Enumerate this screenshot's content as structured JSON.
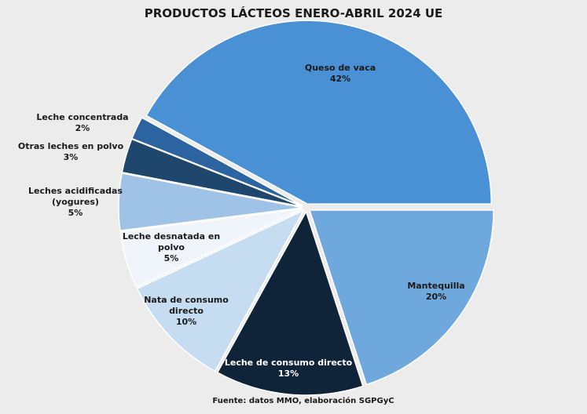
{
  "chart_data": {
    "type": "pie",
    "title": "PRODUCTOS LÁCTEOS ENERO-ABRIL 2024 UE",
    "source": "Fuente: datos MMO,  elaboración SGPGyC",
    "categories": [
      "Queso de vaca",
      "Mantequilla",
      "Leche de consumo directo",
      "Nata de consumo directo",
      "Leche desnatada en polvo",
      "Leches acidificadas (yogures)",
      "Otras leches en polvo",
      "Leche concentrada"
    ],
    "values": [
      42,
      20,
      13,
      10,
      5,
      5,
      3,
      2
    ],
    "value_labels": [
      "42%",
      "20%",
      "13%",
      "10%",
      "5%",
      "5%",
      "3%",
      "2%"
    ],
    "colors": [
      "#4a90d4",
      "#6fa8dc",
      "#0f2439",
      "#c6dcf0",
      "#f0f5fb",
      "#9fc2e7",
      "#1f476e",
      "#2b64a0"
    ]
  }
}
